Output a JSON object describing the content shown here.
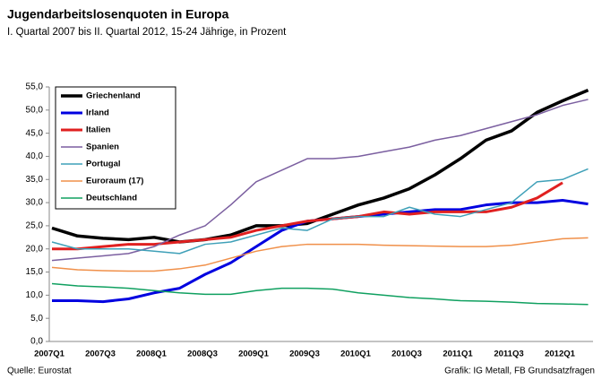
{
  "chart_data": {
    "type": "line",
    "title": "Jugendarbeitslosenquoten in Europa",
    "subtitle": "I. Quartal 2007 bis II. Quartal 2012, 15-24 Jährige, in Prozent",
    "source": "Quelle: Eurostat",
    "credit": "Grafik: IG Metall, FB Grundsatzfragen",
    "categories": [
      "2007Q1",
      null,
      "2007Q3",
      null,
      "2008Q1",
      null,
      "2008Q3",
      null,
      "2009Q1",
      null,
      "2009Q3",
      null,
      "2010Q1",
      null,
      "2010Q3",
      null,
      "2011Q1",
      null,
      "2011Q3",
      null,
      "2012Q1",
      null
    ],
    "ylim": [
      0,
      55
    ],
    "yticks": [
      {
        "value": 0,
        "label": "0,0"
      },
      {
        "value": 5,
        "label": "5,0"
      },
      {
        "value": 10,
        "label": "10,0"
      },
      {
        "value": 15,
        "label": "15,0"
      },
      {
        "value": 20,
        "label": "20,0"
      },
      {
        "value": 25,
        "label": "25,0"
      },
      {
        "value": 30,
        "label": "30,0"
      },
      {
        "value": 35,
        "label": "35,0"
      },
      {
        "value": 40,
        "label": "40,0"
      },
      {
        "value": 45,
        "label": "45,0"
      },
      {
        "value": 50,
        "label": "50,0"
      },
      {
        "value": 55,
        "label": "55,0"
      }
    ],
    "legend": "upper left",
    "series": [
      {
        "name": "Griechenland",
        "color": "#000000",
        "width": 3.5,
        "values": [
          24.5,
          22.8,
          22.3,
          22.0,
          22.5,
          21.5,
          22.0,
          23.0,
          25.0,
          25.0,
          25.5,
          27.5,
          29.5,
          31.0,
          33.0,
          36.0,
          39.5,
          43.5,
          45.5,
          49.5,
          52.0,
          54.3
        ]
      },
      {
        "name": "Irland",
        "color": "#0000e0",
        "width": 3,
        "values": [
          8.8,
          8.8,
          8.6,
          9.2,
          10.5,
          11.5,
          14.5,
          17.0,
          20.5,
          24.0,
          26.0,
          26.5,
          27.0,
          27.5,
          28.0,
          28.5,
          28.5,
          29.5,
          30.0,
          30.0,
          30.5,
          29.7
        ]
      },
      {
        "name": "Italien",
        "color": "#e02020",
        "width": 3,
        "values": [
          20.0,
          20.0,
          20.5,
          21.0,
          21.0,
          21.5,
          22.0,
          22.5,
          24.0,
          25.0,
          26.0,
          26.5,
          27.0,
          28.0,
          27.5,
          28.0,
          28.0,
          28.0,
          29.0,
          31.0,
          34.3,
          null
        ]
      },
      {
        "name": "Spanien",
        "color": "#7b5fa0",
        "width": 1.5,
        "values": [
          17.5,
          18.0,
          18.5,
          19.0,
          20.5,
          23.0,
          25.0,
          29.5,
          34.5,
          37.0,
          39.5,
          39.5,
          40.0,
          41.0,
          42.0,
          43.5,
          44.5,
          46.0,
          47.5,
          49.0,
          51.0,
          52.3
        ]
      },
      {
        "name": "Portugal",
        "color": "#3fa0b8",
        "width": 1.5,
        "values": [
          21.5,
          20.0,
          20.0,
          20.0,
          19.5,
          19.0,
          21.0,
          21.5,
          23.0,
          24.5,
          24.0,
          26.5,
          27.0,
          27.0,
          29.0,
          27.5,
          27.0,
          28.5,
          30.0,
          34.5,
          35.0,
          37.3
        ]
      },
      {
        "name": "Euroraum (17)",
        "color": "#f0904a",
        "width": 1.5,
        "values": [
          16.0,
          15.5,
          15.3,
          15.2,
          15.2,
          15.7,
          16.5,
          18.0,
          19.5,
          20.5,
          21.0,
          21.0,
          21.0,
          20.8,
          20.7,
          20.6,
          20.5,
          20.5,
          20.8,
          21.5,
          22.2,
          22.4
        ]
      },
      {
        "name": "Deutschland",
        "color": "#10a060",
        "width": 1.5,
        "values": [
          12.5,
          12.0,
          11.8,
          11.5,
          11.0,
          10.5,
          10.2,
          10.2,
          11.0,
          11.5,
          11.5,
          11.3,
          10.5,
          10.0,
          9.5,
          9.2,
          8.8,
          8.7,
          8.5,
          8.2,
          8.1,
          8.0
        ]
      }
    ]
  }
}
